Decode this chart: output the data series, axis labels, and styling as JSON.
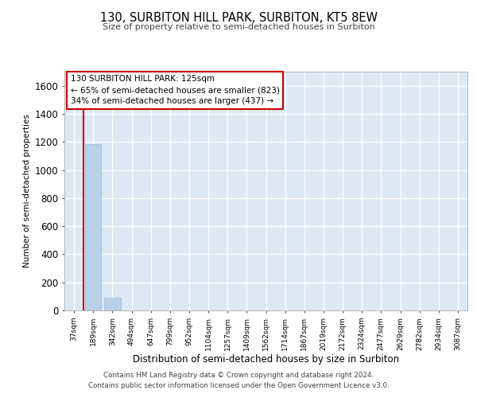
{
  "title1": "130, SURBITON HILL PARK, SURBITON, KT5 8EW",
  "title2": "Size of property relative to semi-detached houses in Surbiton",
  "xlabel": "Distribution of semi-detached houses by size in Surbiton",
  "ylabel": "Number of semi-detached properties",
  "bins": [
    "37sqm",
    "189sqm",
    "342sqm",
    "494sqm",
    "647sqm",
    "799sqm",
    "952sqm",
    "1104sqm",
    "1257sqm",
    "1409sqm",
    "1562sqm",
    "1714sqm",
    "1867sqm",
    "2019sqm",
    "2172sqm",
    "2324sqm",
    "2477sqm",
    "2629sqm",
    "2782sqm",
    "2934sqm",
    "3087sqm"
  ],
  "values": [
    0,
    1185,
    90,
    2,
    0,
    0,
    0,
    0,
    0,
    0,
    0,
    0,
    0,
    0,
    0,
    0,
    0,
    0,
    0,
    0,
    0
  ],
  "bar_color": "#b8d0e8",
  "bar_edge_color": "#99bcd8",
  "background_color": "#dce9f5",
  "grid_color": "#ffffff",
  "ylim": [
    0,
    1700
  ],
  "yticks": [
    0,
    200,
    400,
    600,
    800,
    1000,
    1200,
    1400,
    1600
  ],
  "property_line_x": 0.5,
  "annotation_text1": "130 SURBITON HILL PARK: 125sqm",
  "annotation_text2": "← 65% of semi-detached houses are smaller (823)",
  "annotation_text3": "34% of semi-detached houses are larger (437) →",
  "annotation_border_color": "#cc0000",
  "property_line_color": "#cc0000",
  "footer1": "Contains HM Land Registry data © Crown copyright and database right 2024.",
  "footer2": "Contains public sector information licensed under the Open Government Licence v3.0."
}
